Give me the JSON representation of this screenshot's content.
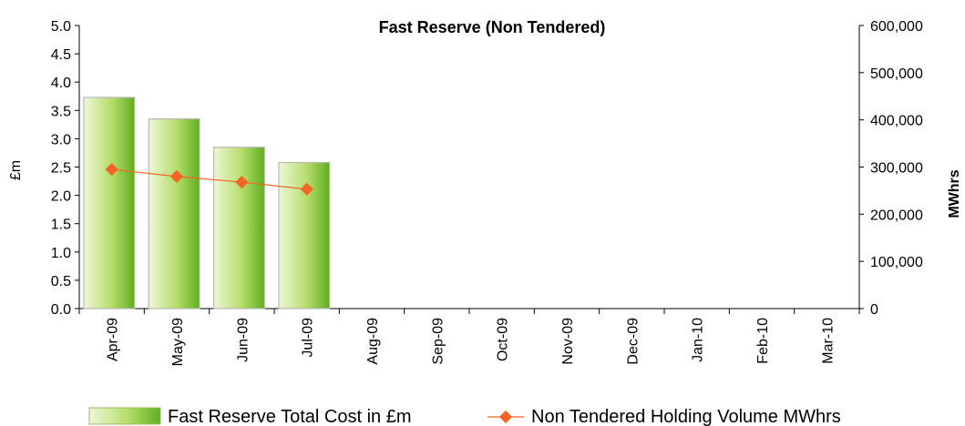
{
  "chart_data": {
    "type": "bar",
    "title": "Fast Reserve (Non Tendered)",
    "ylabel": "£m",
    "ylabel_right": "MWhrs",
    "categories": [
      "Apr-09",
      "May-09",
      "Jun-09",
      "Jul-09",
      "Aug-09",
      "Sep-09",
      "Oct-09",
      "Nov-09",
      "Dec-09",
      "Jan-10",
      "Feb-10",
      "Mar-10"
    ],
    "ylim": [
      0,
      5.0
    ],
    "ylim_right": [
      0,
      600000
    ],
    "y_ticks": [
      "0.0",
      "0.5",
      "1.0",
      "1.5",
      "2.0",
      "2.5",
      "3.0",
      "3.5",
      "4.0",
      "4.5",
      "5.0"
    ],
    "y_ticks_right": [
      "0",
      "100,000",
      "200,000",
      "300,000",
      "400,000",
      "500,000",
      "600,000"
    ],
    "series": [
      {
        "name": "Fast Reserve Total Cost in £m",
        "type": "bar",
        "axis": "left",
        "values": [
          3.73,
          3.35,
          2.85,
          2.58,
          null,
          null,
          null,
          null,
          null,
          null,
          null,
          null
        ],
        "color": "#8cc63f"
      },
      {
        "name": "Non Tendered Holding Volume MWhrs",
        "type": "line",
        "axis": "right",
        "values": [
          295000,
          280000,
          268000,
          253000,
          null,
          null,
          null,
          null,
          null,
          null,
          null,
          null
        ],
        "color": "#f26522"
      }
    ],
    "grid": false,
    "legend_position": "bottom"
  }
}
